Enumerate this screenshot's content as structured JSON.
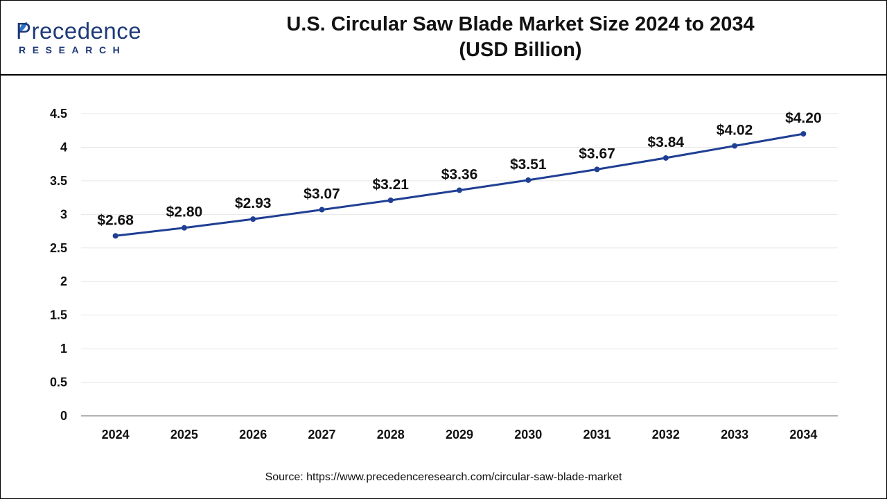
{
  "logo": {
    "name": "Precedence",
    "sub": "RESEARCH"
  },
  "title_line1": "U.S. Circular Saw Blade Market Size 2024 to 2034",
  "title_line2": "(USD Billion)",
  "source": "Source: https://www.precedenceresearch.com/circular-saw-blade-market",
  "colors": {
    "line": "#1f3f94",
    "grid": "#e6e6e6",
    "axis": "#999999",
    "brand": "#1e3a78"
  },
  "chart_data": {
    "type": "line",
    "title": "U.S. Circular Saw Blade Market Size 2024 to 2034 (USD Billion)",
    "categories": [
      "2024",
      "2025",
      "2026",
      "2027",
      "2028",
      "2029",
      "2030",
      "2031",
      "2032",
      "2033",
      "2034"
    ],
    "values": [
      2.68,
      2.8,
      2.93,
      3.07,
      3.21,
      3.36,
      3.51,
      3.67,
      3.84,
      4.02,
      4.2
    ],
    "data_labels": [
      "$2.68",
      "$2.80",
      "$2.93",
      "$3.07",
      "$3.21",
      "$3.36",
      "$3.51",
      "$3.67",
      "$3.84",
      "$4.02",
      "$4.20"
    ],
    "yticks": [
      "0",
      "0.5",
      "1",
      "1.5",
      "2",
      "2.5",
      "3",
      "3.5",
      "4",
      "4.5"
    ],
    "ylim": [
      0,
      4.5
    ],
    "grid": true,
    "legend": "none"
  }
}
